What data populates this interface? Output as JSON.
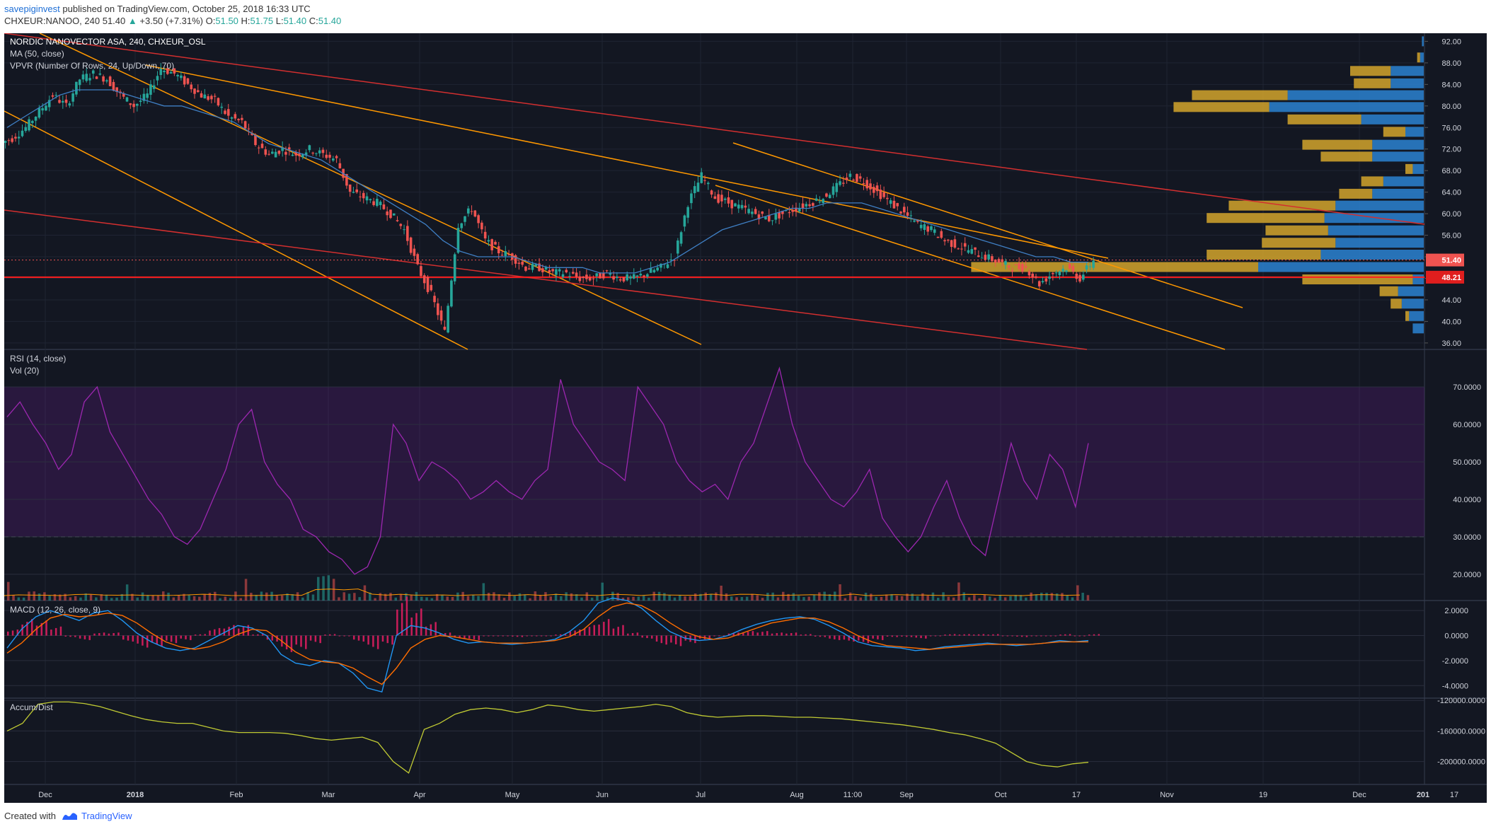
{
  "header": {
    "author": "savepiginvest",
    "published": "published on TradingView.com, October 25, 2018 16:33 UTC",
    "symbol": "CHXEUR:NANOO, 240",
    "last": "51.40",
    "change": "+3.50 (+7.31%)",
    "o_label": "O:",
    "o": "51.50",
    "h_label": "H:",
    "h": "51.75",
    "l_label": "L:",
    "l": "51.40",
    "c_label": "C:",
    "c": "51.40"
  },
  "footer": {
    "created_with": "Created with",
    "brand": "TradingView"
  },
  "colors": {
    "background": "#131722",
    "up": "#26a69a",
    "down": "#ef5350",
    "channel": "#ff9800",
    "trend_red": "#d32f2f",
    "rsi": "#9c27b0",
    "macd": "#2196f3",
    "signal": "#ff6d00",
    "accum": "#c0ca33",
    "vp_up": "#2b83d1",
    "vp_down": "#d4a52c"
  },
  "chart_data": [
    {
      "type": "candlestick",
      "title": "NORDIC NANOVECTOR ASA, 240, CHXEUR_OSL",
      "indicators": [
        "MA (50, close)",
        "VPVR (Number Of Rows, 24, Up/Down, 70)"
      ],
      "x_ticks": [
        "Dec",
        "2018",
        "Feb",
        "Mar",
        "Apr",
        "May",
        "Jun",
        "Jul",
        "Aug",
        "11:00",
        "Sep",
        "Oct",
        "17",
        "Nov",
        "19",
        "Dec",
        "17",
        "201"
      ],
      "y_ticks": [
        "92.00",
        "88.00",
        "84.00",
        "80.00",
        "76.00",
        "72.00",
        "68.00",
        "64.00",
        "60.00",
        "56.00",
        "52.00",
        "48.00",
        "44.00",
        "40.00",
        "36.00"
      ],
      "ylim": [
        34.8,
        93.5
      ],
      "last_price_label": "51.40",
      "support_label": "48.21",
      "close_series": [
        74,
        76,
        79,
        82,
        80,
        85,
        86,
        85,
        82,
        80,
        82,
        87,
        86,
        84,
        82,
        81,
        78,
        77,
        73,
        71,
        72,
        71,
        72,
        71,
        70,
        64,
        63,
        62,
        60,
        57,
        50,
        45,
        38,
        58,
        61,
        55,
        53,
        52,
        50,
        50,
        49,
        49,
        48,
        48,
        49,
        48,
        48,
        49,
        50,
        52,
        62,
        67,
        63,
        62,
        61,
        60,
        59,
        60,
        61,
        62,
        63,
        65,
        67,
        66,
        64,
        62,
        60,
        58,
        57,
        55,
        54,
        53,
        52,
        51,
        50,
        50,
        47,
        49,
        50,
        48,
        51.4
      ],
      "ma50_series": [
        76,
        78,
        80,
        82,
        83,
        83,
        83,
        82,
        81,
        80,
        80,
        79,
        78,
        77,
        75,
        73,
        72,
        71,
        70,
        68,
        66,
        64,
        62,
        60,
        58,
        55,
        53,
        52,
        52,
        52,
        51,
        50,
        50,
        50,
        49,
        49,
        49,
        50,
        51,
        53,
        55,
        57,
        58,
        59,
        60,
        61,
        61,
        62,
        62,
        62,
        61,
        60,
        59,
        58,
        57,
        56,
        55,
        54,
        53,
        52,
        52,
        51,
        51
      ],
      "volume_profile": [
        {
          "price": 92,
          "up": 0.005,
          "down": 0
        },
        {
          "price": 89,
          "up": 0.01,
          "down": 0.008
        },
        {
          "price": 86.5,
          "up": 0.09,
          "down": 0.11
        },
        {
          "price": 84.2,
          "up": 0.09,
          "down": 0.1
        },
        {
          "price": 82,
          "up": 0.37,
          "down": 0.26
        },
        {
          "price": 79.8,
          "up": 0.42,
          "down": 0.26
        },
        {
          "price": 77.5,
          "up": 0.17,
          "down": 0.2
        },
        {
          "price": 75.2,
          "up": 0.05,
          "down": 0.06
        },
        {
          "price": 72.8,
          "up": 0.14,
          "down": 0.19
        },
        {
          "price": 70.6,
          "up": 0.14,
          "down": 0.14
        },
        {
          "price": 68.3,
          "up": 0.03,
          "down": 0.02
        },
        {
          "price": 66,
          "up": 0.11,
          "down": 0.06
        },
        {
          "price": 63.7,
          "up": 0.14,
          "down": 0.09
        },
        {
          "price": 61.5,
          "up": 0.24,
          "down": 0.29
        },
        {
          "price": 59.2,
          "up": 0.27,
          "down": 0.32
        },
        {
          "price": 56.9,
          "up": 0.26,
          "down": 0.17
        },
        {
          "price": 54.6,
          "up": 0.24,
          "down": 0.2
        },
        {
          "price": 52.4,
          "up": 0.28,
          "down": 0.31
        },
        {
          "price": 50.1,
          "up": 0.45,
          "down": 0.78
        },
        {
          "price": 47.8,
          "up": 0.03,
          "down": 0.3
        },
        {
          "price": 45.6,
          "up": 0.07,
          "down": 0.05
        },
        {
          "price": 43.3,
          "up": 0.06,
          "down": 0.03
        },
        {
          "price": 41,
          "up": 0.04,
          "down": 0.01
        },
        {
          "price": 38.7,
          "up": 0.03,
          "down": 0
        }
      ]
    },
    {
      "type": "line",
      "title": "RSI (14, close)",
      "volume_title": "Vol (20)",
      "y_ticks": [
        "70.0000",
        "60.0000",
        "50.0000",
        "40.0000",
        "30.0000",
        "20.0000"
      ],
      "ylim": [
        13,
        80
      ],
      "band": [
        30,
        70
      ],
      "values": [
        62,
        66,
        60,
        55,
        48,
        52,
        66,
        70,
        58,
        52,
        46,
        40,
        36,
        30,
        28,
        32,
        40,
        48,
        60,
        64,
        50,
        44,
        40,
        32,
        30,
        26,
        24,
        20,
        22,
        30,
        60,
        55,
        45,
        50,
        48,
        45,
        40,
        42,
        45,
        42,
        40,
        45,
        48,
        72,
        60,
        55,
        50,
        48,
        45,
        70,
        65,
        60,
        50,
        45,
        42,
        44,
        40,
        50,
        55,
        65,
        75,
        60,
        50,
        45,
        40,
        38,
        42,
        48,
        35,
        30,
        26,
        30,
        38,
        45,
        35,
        28,
        25,
        40,
        55,
        45,
        40,
        52,
        48,
        38,
        55
      ]
    },
    {
      "type": "line",
      "title": "MACD (12, 26, close, 9)",
      "y_ticks": [
        "2.0000",
        "0.0000",
        "-2.0000",
        "-4.0000"
      ],
      "ylim": [
        -5,
        2.8
      ],
      "macd": [
        -1,
        0.5,
        1.5,
        2,
        1.6,
        1.2,
        1.8,
        2,
        1.2,
        0.2,
        -0.5,
        -1,
        -1.2,
        -1,
        -0.4,
        0.2,
        0.8,
        0.6,
        0,
        -1.5,
        -2.2,
        -2.4,
        -2,
        -2.2,
        -3,
        -4.2,
        -4.5,
        0,
        0.8,
        0.6,
        0.2,
        -0.3,
        -0.6,
        -0.5,
        -0.6,
        -0.7,
        -0.6,
        -0.5,
        -0.3,
        0.3,
        1.2,
        2.6,
        3,
        2.8,
        2.2,
        1.2,
        0.3,
        -0.2,
        -0.4,
        -0.3,
        0,
        0.5,
        0.9,
        1.2,
        1.4,
        1.5,
        1.3,
        0.8,
        0.2,
        -0.5,
        -0.8,
        -0.9,
        -1.0,
        -1.2,
        -1.1,
        -0.9,
        -0.8,
        -0.7,
        -0.6,
        -0.7,
        -0.8,
        -0.7,
        -0.6,
        -0.4,
        -0.5,
        -0.4
      ],
      "signal": [
        -1.4,
        -0.6,
        0.5,
        1.4,
        1.7,
        1.5,
        1.6,
        1.8,
        1.6,
        1,
        0.2,
        -0.5,
        -0.9,
        -1.1,
        -0.9,
        -0.5,
        0.1,
        0.5,
        0.4,
        -0.4,
        -1.3,
        -1.9,
        -2.1,
        -2.2,
        -2.6,
        -3.3,
        -3.9,
        -2.6,
        -1,
        -0.3,
        0,
        -0.1,
        -0.3,
        -0.5,
        -0.6,
        -0.6,
        -0.6,
        -0.5,
        -0.4,
        -0.1,
        0.5,
        1.5,
        2.3,
        2.6,
        2.4,
        1.8,
        1,
        0.3,
        -0.1,
        -0.3,
        -0.2,
        0.2,
        0.6,
        1,
        1.2,
        1.4,
        1.4,
        1.1,
        0.6,
        0,
        -0.5,
        -0.8,
        -0.9,
        -1.0,
        -1.1,
        -1.0,
        -0.9,
        -0.8,
        -0.7,
        -0.7,
        -0.7,
        -0.7,
        -0.6,
        -0.5,
        -0.5,
        -0.5
      ]
    },
    {
      "type": "line",
      "title": "Accum/Dist",
      "y_ticks": [
        "-120000.0000",
        "-160000.0000",
        "-200000.0000"
      ],
      "ylim": [
        -230000,
        -117000
      ],
      "values": [
        -160000,
        -150000,
        -125000,
        -122000,
        -122000,
        -124000,
        -128000,
        -134000,
        -140000,
        -145000,
        -148000,
        -150000,
        -150000,
        -155000,
        -160000,
        -162000,
        -162000,
        -162000,
        -163000,
        -166000,
        -170000,
        -172000,
        -170000,
        -168000,
        -175000,
        -200000,
        -215000,
        -158000,
        -150000,
        -138000,
        -132000,
        -130000,
        -132000,
        -136000,
        -132000,
        -126000,
        -128000,
        -132000,
        -134000,
        -132000,
        -130000,
        -128000,
        -125000,
        -128000,
        -136000,
        -140000,
        -142000,
        -141000,
        -140000,
        -140000,
        -141000,
        -142000,
        -142000,
        -143000,
        -144000,
        -146000,
        -148000,
        -150000,
        -152000,
        -155000,
        -158000,
        -162000,
        -165000,
        -170000,
        -176000,
        -188000,
        -200000,
        -205000,
        -207000,
        -203000,
        -201000
      ]
    }
  ]
}
